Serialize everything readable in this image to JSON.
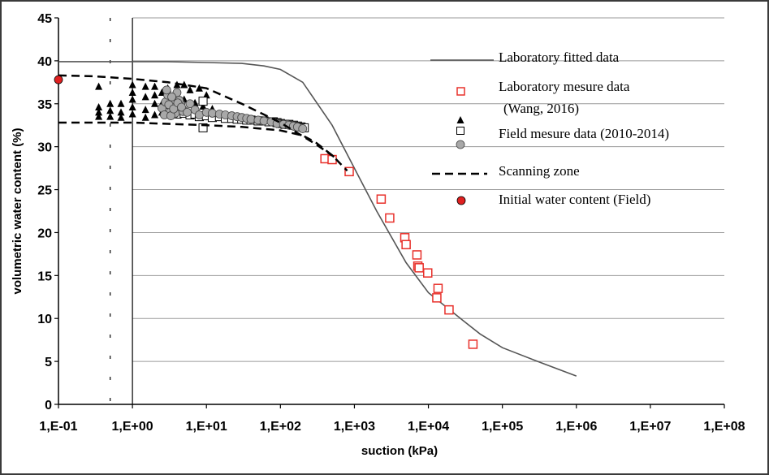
{
  "chart_data": {
    "type": "scatter",
    "xscale": "log",
    "xlabel": "suction (kPa)",
    "ylabel": "volumetric water content (%)",
    "xlim": [
      0.1,
      100000000
    ],
    "ylim": [
      0,
      45
    ],
    "x_ticks": [
      0.1,
      1,
      10,
      100,
      1000,
      10000,
      100000,
      1000000,
      10000000,
      100000000
    ],
    "x_tick_labels": [
      "1,E-01",
      "1,E+00",
      "1,E+01",
      "1,E+02",
      "1,E+03",
      "1,E+04",
      "1,E+05",
      "1,E+06",
      "1,E+07",
      "1,E+08"
    ],
    "y_ticks": [
      0,
      5,
      10,
      15,
      20,
      25,
      30,
      35,
      40,
      45
    ],
    "y_tick_labels": [
      "0",
      "5",
      "10",
      "15",
      "20",
      "25",
      "30",
      "35",
      "40",
      "45"
    ],
    "grid": {
      "horizontal": true,
      "vertical": false
    },
    "legend_position": "right",
    "colors": {
      "fitted": "#555555",
      "lab": "#e8302a",
      "field_tri": "#000000",
      "field_sq": "#000000",
      "field_circle": "#a8a8a8",
      "scanning": "#000000",
      "initial": "#e02020",
      "grid": "#9a9a9a"
    },
    "series": [
      {
        "name": "Laboratory fitted data",
        "style": "line",
        "x": [
          0.1,
          1,
          3,
          10,
          30,
          60,
          100,
          200,
          500,
          1000,
          2000,
          5000,
          10000,
          30000,
          50000,
          100000,
          300000,
          1000000
        ],
        "y": [
          39.9,
          39.9,
          39.9,
          39.8,
          39.7,
          39.4,
          39.0,
          37.5,
          32.5,
          27.5,
          22.5,
          16.5,
          13.0,
          9.7,
          8.2,
          6.6,
          5.0,
          3.3
        ]
      },
      {
        "name": "Laboratory mesure data\n(Wang, 2016)",
        "style": "open-square",
        "x": [
          400,
          500,
          850,
          2300,
          3000,
          4800,
          5000,
          7000,
          7200,
          7500,
          9800,
          13000,
          13500,
          19000,
          40000
        ],
        "y": [
          28.6,
          28.5,
          27.1,
          23.9,
          21.7,
          19.4,
          18.6,
          17.4,
          16.1,
          15.9,
          15.3,
          12.4,
          13.5,
          11.0,
          7.0
        ]
      },
      {
        "name": "",
        "style": "filled-triangle",
        "x": [
          0.35,
          0.35,
          0.35,
          0.35,
          0.5,
          0.5,
          0.5,
          0.7,
          0.7,
          0.7,
          1,
          1,
          1,
          1,
          1,
          1.5,
          1.5,
          1.5,
          1.5,
          2,
          2,
          2,
          2,
          2.5,
          2.5,
          2.5,
          3,
          3,
          3,
          4,
          4,
          5,
          5,
          6,
          7,
          8,
          9,
          10,
          12,
          15,
          20
        ],
        "y": [
          37.0,
          34.6,
          34.0,
          33.5,
          35.0,
          34.2,
          33.5,
          35.0,
          34.0,
          33.4,
          37.2,
          36.3,
          35.5,
          34.6,
          33.8,
          37.0,
          35.8,
          34.3,
          33.4,
          37.0,
          36.0,
          35.0,
          33.7,
          36.3,
          35.0,
          34.0,
          36.8,
          35.2,
          34.0,
          37.2,
          35.3,
          37.2,
          35.5,
          36.6,
          35.1,
          36.8,
          34.7,
          36.0,
          34.4,
          33.6,
          33.2
        ]
      },
      {
        "name": "",
        "style": "open-square",
        "x": [
          3,
          4,
          5,
          6,
          7,
          8,
          9,
          10,
          12,
          15,
          18,
          22,
          26,
          30,
          35,
          40,
          50,
          60,
          70,
          80,
          90,
          100,
          115,
          130,
          150,
          170,
          190,
          210,
          9
        ],
        "y": [
          34.0,
          33.8,
          33.9,
          33.7,
          33.8,
          33.5,
          35.3,
          33.6,
          33.4,
          33.5,
          33.3,
          33.3,
          33.2,
          33.2,
          33.1,
          33.1,
          33.0,
          33.0,
          32.9,
          32.9,
          32.8,
          32.7,
          32.6,
          32.6,
          32.5,
          32.4,
          32.3,
          32.2,
          32.2
        ]
      },
      {
        "name": "Field mesure data  (2010-2014)",
        "style": "filled-circle",
        "x": [
          2.5,
          2.8,
          3,
          3.2,
          3.5,
          3.7,
          4,
          4.2,
          4.5,
          5,
          2.7,
          3.1,
          3.4,
          3.8,
          4.3,
          4.8,
          2.9,
          3.3,
          3.6,
          4.1,
          4.6,
          5.5,
          6,
          7,
          8,
          10,
          12,
          15,
          18,
          22,
          26,
          30,
          35,
          40,
          50,
          60,
          75,
          90,
          110,
          130,
          150,
          170,
          200
        ],
        "y": [
          34.5,
          35.2,
          36.0,
          34.0,
          35.5,
          33.8,
          36.3,
          34.7,
          35.0,
          34.2,
          33.7,
          34.9,
          35.8,
          33.9,
          35.4,
          34.1,
          36.6,
          33.6,
          34.4,
          35.1,
          34.6,
          34.0,
          35.0,
          34.3,
          33.7,
          34.0,
          33.9,
          33.8,
          33.7,
          33.6,
          33.5,
          33.4,
          33.3,
          33.2,
          33.1,
          33.0,
          32.9,
          32.7,
          32.6,
          32.5,
          32.4,
          32.3,
          32.1
        ]
      },
      {
        "name": "Scanning zone",
        "style": "dashed-line",
        "segments": [
          {
            "x": [
              0.1,
              0.3,
              1,
              3,
              10,
              30,
              100,
              300,
              600
            ],
            "y": [
              38.3,
              38.2,
              37.9,
              37.5,
              36.8,
              35.0,
              32.8,
              30.3,
              28.5
            ]
          },
          {
            "x": [
              0.1,
              1,
              10,
              30,
              100,
              200,
              300,
              500,
              800
            ],
            "y": [
              32.8,
              32.8,
              32.5,
              32.3,
              31.9,
              31.3,
              30.5,
              29.0,
              27.2
            ]
          }
        ]
      },
      {
        "name": "Initial water content (Field)",
        "style": "red-circle",
        "x": [
          0.1
        ],
        "y": [
          37.8
        ]
      }
    ]
  }
}
